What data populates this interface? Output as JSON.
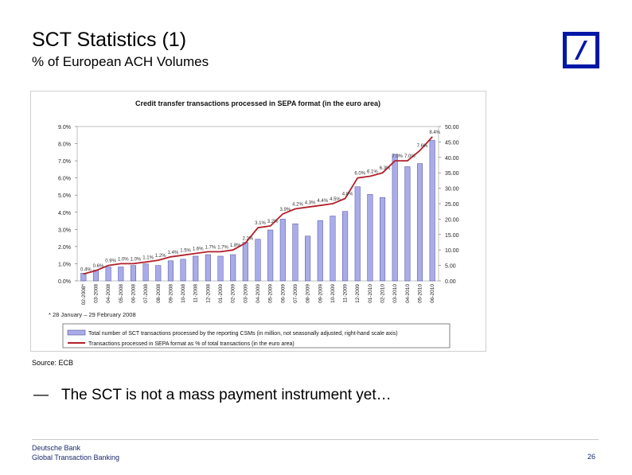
{
  "slide": {
    "title": "SCT Statistics (1)",
    "subtitle": "% of European ACH Volumes",
    "source": "Source: ECB",
    "bullet_dash": "—",
    "bullet_text": "The SCT is not a mass payment instrument yet…",
    "footer_line1": "Deutsche Bank",
    "footer_line2": "Global Transaction Banking",
    "page_number": "26"
  },
  "colors": {
    "bar_fill": "#a9ace8",
    "bar_stroke": "#4d4f9e",
    "line": "#b3202a",
    "logo_blue": "#0018a8"
  },
  "chart_data": {
    "type": "bar",
    "title": "Credit transfer transactions processed in SEPA format (in the euro area)",
    "footnote": "* 28 January – 29 February 2008",
    "categories": [
      "02-2008*",
      "03-2008",
      "04-2008",
      "05-2008",
      "06-2008",
      "07-2008",
      "08-2008",
      "09-2008",
      "10-2008",
      "11-2008",
      "12-2008",
      "01-2009",
      "02-2009",
      "03-2009",
      "04-2009",
      "05-2009",
      "06-2009",
      "07-2009",
      "08-2009",
      "09-2009",
      "10-2009",
      "11-2009",
      "12-2009",
      "01-2010",
      "02-2010",
      "03-2010",
      "04-2010",
      "05-2010",
      "06-2010"
    ],
    "x_tick_labels": [
      "02-2008*",
      "03-2008",
      "04-2008",
      "05-2008",
      "06-2008",
      "07-2008",
      "08-2008",
      "09-2008",
      "10-2008",
      "11-2008",
      "12-2008",
      "01-2009",
      "02-2009",
      "03-2009",
      "04-2009",
      "05-2009",
      "06-2009",
      "07-2009",
      "08-2009",
      "09-2009",
      "10-2009",
      "11-2009",
      "12-2009",
      "01-2010",
      "02-2010",
      "03-2010",
      "04-2010",
      "05-2010",
      "06-2010"
    ],
    "series": [
      {
        "name": "Total number of SCT transactions processed by the reporting CSMs (in million, not seasonally adjusted, right-hand scale axis)",
        "type": "bar",
        "axis": "right",
        "values": [
          2.5,
          3.5,
          4.5,
          4.5,
          5.0,
          5.5,
          5.0,
          6.5,
          7.0,
          8.0,
          8.5,
          8.0,
          8.5,
          12.5,
          13.5,
          16.5,
          20.0,
          18.5,
          14.5,
          19.5,
          21.0,
          22.5,
          30.5,
          28.0,
          27.0,
          41.0,
          37.0,
          38.0,
          45.5
        ]
      },
      {
        "name": "Transactions processed in SEPA format as % of total transactions (in the euro area)",
        "type": "line",
        "axis": "left",
        "values": [
          0.4,
          0.6,
          0.9,
          1.0,
          1.0,
          1.1,
          1.2,
          1.4,
          1.5,
          1.6,
          1.7,
          1.7,
          1.8,
          2.2,
          3.1,
          3.2,
          3.9,
          4.2,
          4.3,
          4.4,
          4.5,
          4.8,
          6.0,
          6.1,
          6.3,
          7.0,
          7.0,
          7.6,
          8.4
        ]
      }
    ],
    "data_labels": [
      "0.4%",
      "0.6%",
      "0.9%",
      "1.0%",
      "1.0%",
      "1.1%",
      "1.2%",
      "1.4%",
      "1.5%",
      "1.6%",
      "1.7%",
      "1.7%",
      "1.8%",
      "2.2%",
      "3.1%",
      "3.2%",
      "3.9%",
      "4.2%",
      "4.3%",
      "4.4%",
      "4.5%",
      "4.8%",
      "6.0%",
      "6.1%",
      "6.3%",
      "7.0%",
      "7.0%",
      "7.6%",
      "8.4%"
    ],
    "y_left_ticks": [
      "0.0%",
      "1.0%",
      "2.0%",
      "3.0%",
      "4.0%",
      "5.0%",
      "6.0%",
      "7.0%",
      "8.0%",
      "9.0%"
    ],
    "y_right_ticks": [
      "0.00",
      "5.00",
      "10.00",
      "15.00",
      "20.00",
      "25.00",
      "30.00",
      "35.00",
      "40.00",
      "45.00",
      "50.00"
    ],
    "ylim_left": [
      0,
      9
    ],
    "ylim_right": [
      0,
      50
    ],
    "legend_position": "bottom"
  }
}
